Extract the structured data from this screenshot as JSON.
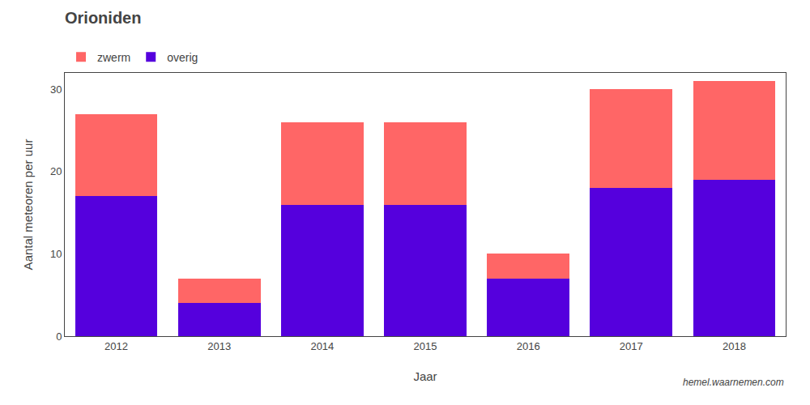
{
  "chart_data": {
    "type": "bar",
    "title": "Orioniden",
    "xlabel": "Jaar",
    "ylabel": "Aantal meteoren per uur",
    "categories": [
      "2012",
      "2013",
      "2014",
      "2015",
      "2016",
      "2017",
      "2018"
    ],
    "series": [
      {
        "name": "overig",
        "color": "#5500dd",
        "values": [
          17,
          4,
          16,
          16,
          7,
          18,
          19
        ]
      },
      {
        "name": "zwerm",
        "color": "#ff6666",
        "values": [
          10,
          3,
          10,
          10,
          3,
          12,
          12
        ]
      }
    ],
    "stacked": true,
    "ylim": [
      0,
      32
    ],
    "yticks": [
      0,
      10,
      20,
      30
    ],
    "grid": false,
    "legend": "upper left",
    "annotations": [
      "hemel.waarnemen.com"
    ]
  }
}
